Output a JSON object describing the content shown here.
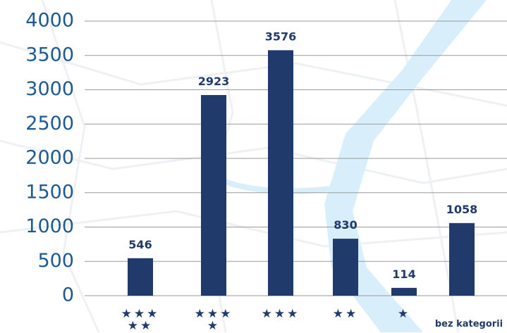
{
  "chart_data": {
    "type": "bar",
    "categories": [
      "★★★★★",
      "★★★★",
      "★★★",
      "★★",
      "★",
      "bez kategorii"
    ],
    "values": [
      546,
      2923,
      3576,
      830,
      114,
      1058
    ],
    "color": "#203a6c",
    "ylim": [
      0,
      4000
    ],
    "yticks": [
      0,
      500,
      1000,
      1500,
      2000,
      2500,
      3000,
      3500,
      4000
    ],
    "grid": true
  }
}
